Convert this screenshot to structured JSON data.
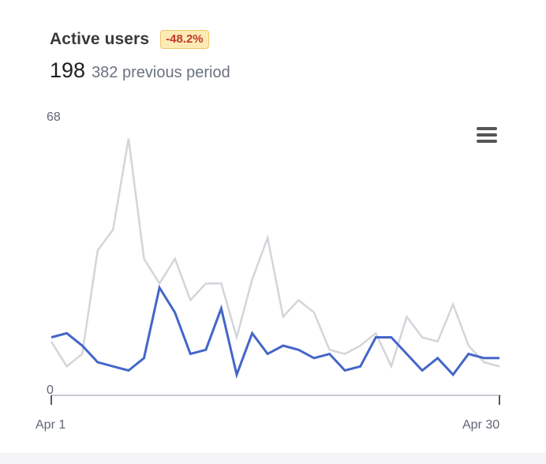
{
  "header": {
    "title": "Active users",
    "change_badge": "-48.2%",
    "current_value": "198",
    "previous_label": "382 previous period"
  },
  "menu": {
    "icon": "hamburger-menu-icon"
  },
  "colors": {
    "current_series": "#4466c8",
    "previous_series": "#d3d5da",
    "badge_bg": "#fdebb6",
    "badge_text": "#c0392b",
    "axis": "#c8cbd2"
  },
  "chart_data": {
    "type": "line",
    "title": "Active users",
    "x_tick_labels": [
      "Apr 1",
      "Apr 30"
    ],
    "y_tick_labels": [
      "0",
      "68"
    ],
    "ylim": [
      0,
      68
    ],
    "x": [
      1,
      2,
      3,
      4,
      5,
      6,
      7,
      8,
      9,
      10,
      11,
      12,
      13,
      14,
      15,
      16,
      17,
      18,
      19,
      20,
      21,
      22,
      23,
      24,
      25,
      26,
      27,
      28,
      29,
      30
    ],
    "series": [
      {
        "role": "current",
        "values": [
          14,
          15,
          12,
          8,
          7,
          6,
          9,
          26,
          20,
          10,
          11,
          21,
          5,
          15,
          10,
          12,
          11,
          9,
          10,
          6,
          7,
          14,
          14,
          10,
          6,
          9,
          5,
          10,
          9,
          9
        ]
      },
      {
        "role": "previous",
        "values": [
          13,
          7,
          10,
          35,
          40,
          62,
          33,
          27,
          33,
          23,
          27,
          27,
          14,
          28,
          38,
          19,
          23,
          20,
          11,
          10,
          12,
          15,
          7,
          19,
          14,
          13,
          22,
          12,
          8,
          7
        ]
      }
    ],
    "grid": false,
    "legend": "none"
  }
}
